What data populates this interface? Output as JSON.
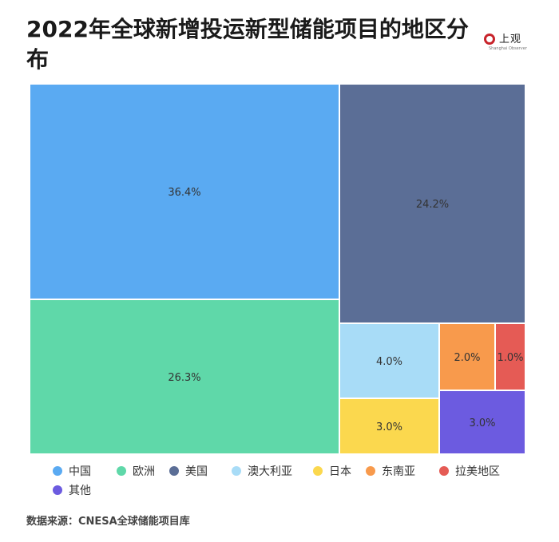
{
  "title": "2022年全球新增投运新型储能项目的地区分布",
  "logo": {
    "text": "上观",
    "sub": "Shanghai Observer",
    "color": "#c8242b"
  },
  "source": "数据来源：CNESA全球储能项目库",
  "chart_data": {
    "type": "treemap",
    "title": "2022年全球新增投运新型储能项目的地区分布",
    "unit": "%",
    "items": [
      {
        "name": "中国",
        "value": 36.4,
        "label": "36.4%",
        "color": "#5aaaf2"
      },
      {
        "name": "欧洲",
        "value": 26.3,
        "label": "26.3%",
        "color": "#5fd8a9"
      },
      {
        "name": "美国",
        "value": 24.2,
        "label": "24.2%",
        "color": "#5b6e96"
      },
      {
        "name": "澳大利亚",
        "value": 4.0,
        "label": "4.0%",
        "color": "#a8dcf7"
      },
      {
        "name": "日本",
        "value": 3.0,
        "label": "3.0%",
        "color": "#fbd84e"
      },
      {
        "name": "东南亚",
        "value": 2.0,
        "label": "2.0%",
        "color": "#f89a4c"
      },
      {
        "name": "拉美地区",
        "value": 1.0,
        "label": "1.0%",
        "color": "#e55b55"
      },
      {
        "name": "其他",
        "value": 3.0,
        "label": "3.0%",
        "color": "#6c5be0"
      }
    ],
    "legend_position": "bottom"
  }
}
